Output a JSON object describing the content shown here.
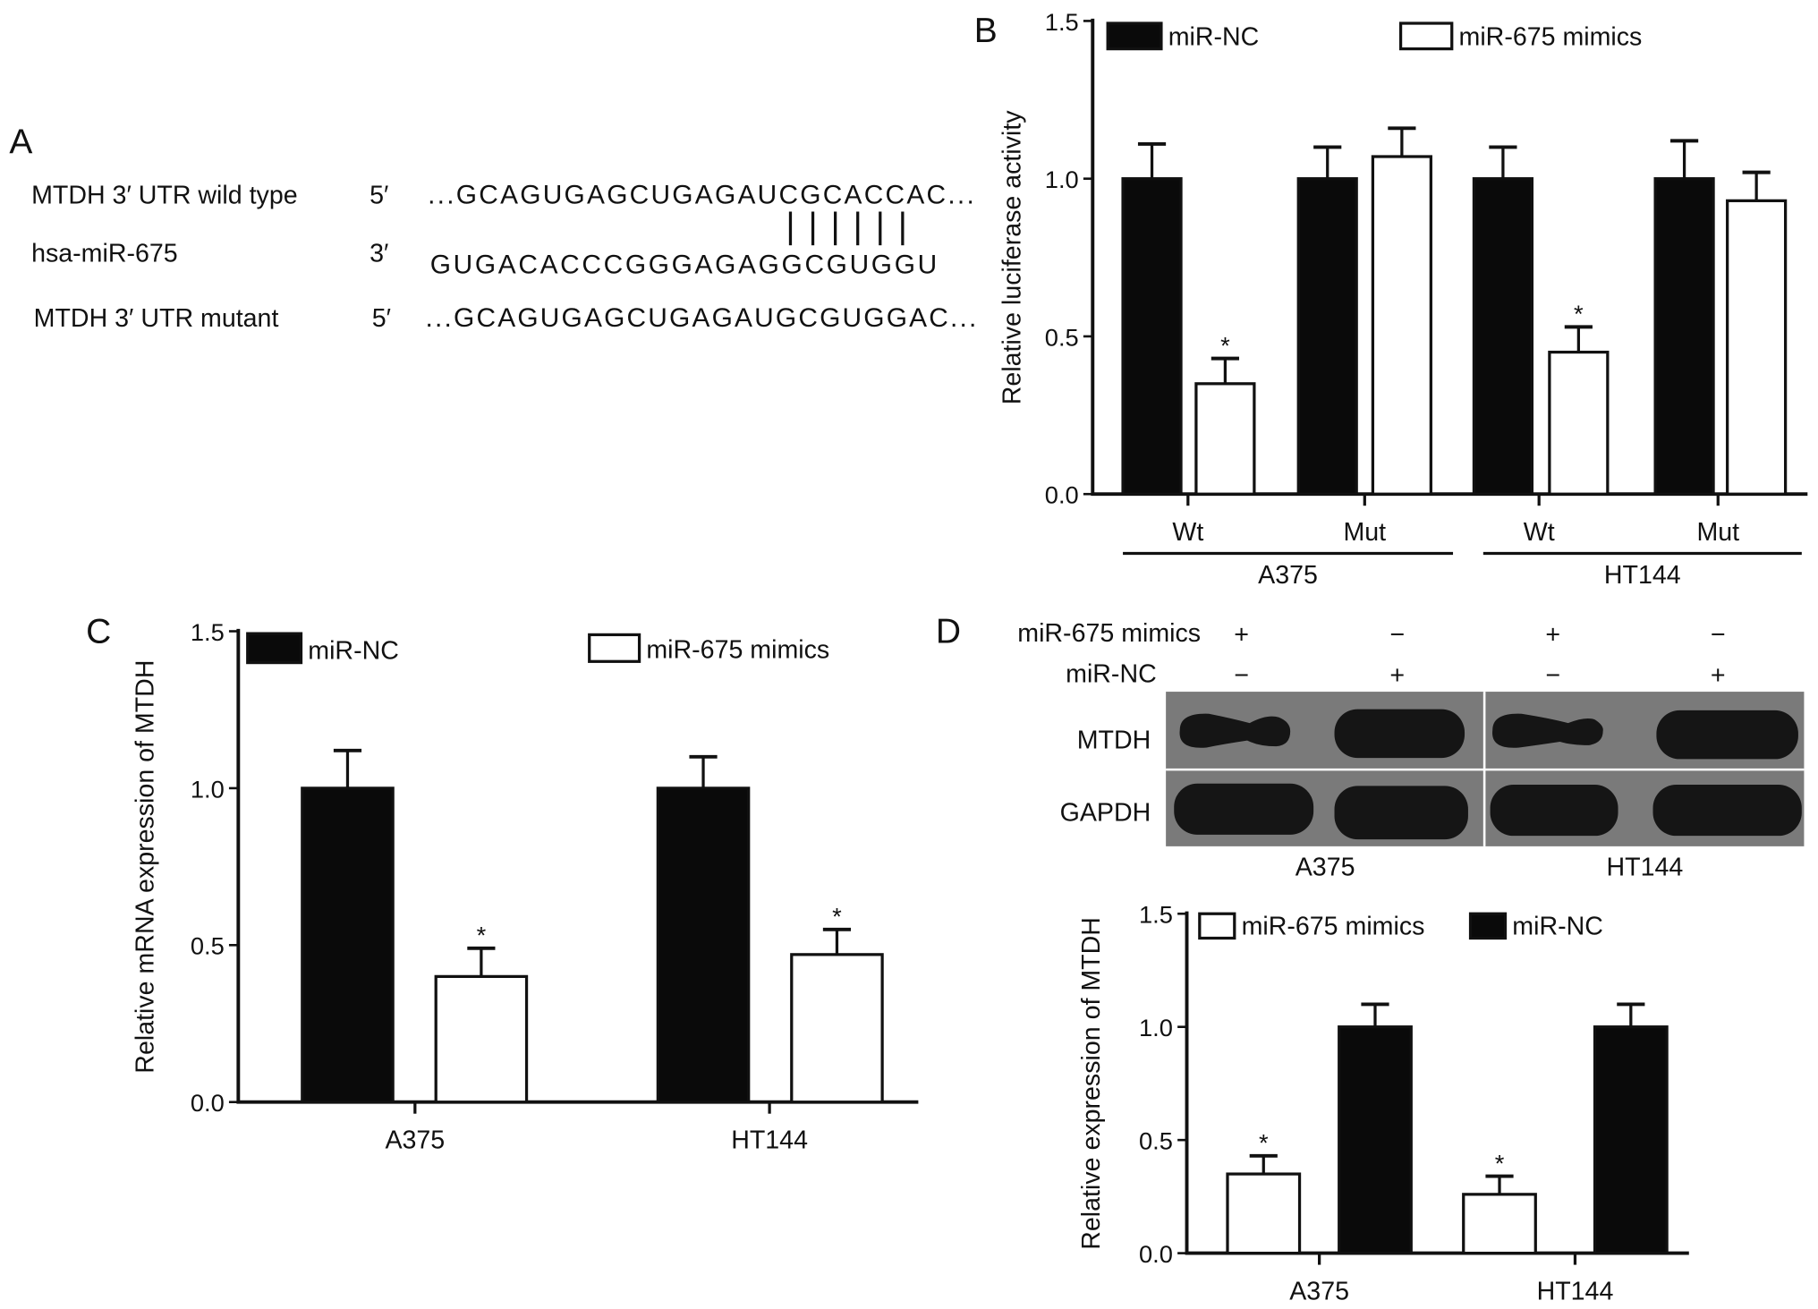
{
  "panels": {
    "a": "A",
    "b": "B",
    "c": "C",
    "d": "D"
  },
  "panel_a": {
    "rows": [
      {
        "label": "MTDH 3′ UTR wild type",
        "end": "5′",
        "sequence": "...GCAGUGAGCUGAGAUCGCACCAC..."
      },
      {
        "label": "hsa-miR-675",
        "end": "3′",
        "sequence": "GUGACACCCGGGAGAGGCGUGGU"
      },
      {
        "label": "MTDH 3′ UTR mutant",
        "end": "5′",
        "sequence": "...GCAGUGAGCUGAGAUGCGUGGAC..."
      }
    ],
    "pairing_lines": 6
  },
  "blot": {
    "row_labels": [
      "miR-675 mimics",
      "miR-NC"
    ],
    "conditions": [
      [
        "+",
        "−",
        "+",
        "−"
      ],
      [
        "−",
        "+",
        "−",
        "+"
      ]
    ],
    "bands": [
      "MTDH",
      "GAPDH"
    ],
    "cell_lines": [
      "A375",
      "HT144"
    ]
  },
  "colors": {
    "miR-NC": "#0a0a0a",
    "miR-675 mimics": "#ffffff",
    "blot_bg": "#777777"
  },
  "chart_data": [
    {
      "id": "B",
      "type": "bar",
      "ylabel": "Relative luciferase activity",
      "ylim": [
        0,
        1.5
      ],
      "yticks": [
        "0.0",
        "0.5",
        "1.0",
        "1.5"
      ],
      "categories": [
        "Wt",
        "Mut",
        "Wt",
        "Mut"
      ],
      "groups": [
        "A375",
        "HT144"
      ],
      "legend": "top",
      "series": [
        {
          "name": "miR-NC",
          "values": [
            1.0,
            1.0,
            1.0,
            1.0
          ],
          "errors": [
            0.11,
            0.1,
            0.1,
            0.12
          ]
        },
        {
          "name": "miR-675 mimics",
          "values": [
            0.35,
            1.07,
            0.45,
            0.93
          ],
          "errors": [
            0.08,
            0.09,
            0.08,
            0.09
          ],
          "significance": [
            "*",
            "",
            "*",
            ""
          ]
        }
      ]
    },
    {
      "id": "C",
      "type": "bar",
      "ylabel": "Relative mRNA expression of MTDH",
      "ylim": [
        0,
        1.5
      ],
      "yticks": [
        "0.0",
        "0.5",
        "1.0",
        "1.5"
      ],
      "categories": [
        "A375",
        "HT144"
      ],
      "legend": "top",
      "series": [
        {
          "name": "miR-NC",
          "values": [
            1.0,
            1.0
          ],
          "errors": [
            0.12,
            0.1
          ]
        },
        {
          "name": "miR-675 mimics",
          "values": [
            0.4,
            0.47
          ],
          "errors": [
            0.09,
            0.08
          ],
          "significance": [
            "*",
            "*"
          ]
        }
      ]
    },
    {
      "id": "D",
      "type": "bar",
      "ylabel": "Relative expression of MTDH",
      "ylim": [
        0,
        1.5
      ],
      "yticks": [
        "0.0",
        "0.5",
        "1.0",
        "1.5"
      ],
      "categories": [
        "A375",
        "HT144"
      ],
      "legend": "top",
      "series": [
        {
          "name": "miR-675 mimics",
          "values": [
            0.35,
            0.26
          ],
          "errors": [
            0.08,
            0.08
          ],
          "significance": [
            "*",
            "*"
          ]
        },
        {
          "name": "miR-NC",
          "values": [
            1.0,
            1.0
          ],
          "errors": [
            0.1,
            0.1
          ]
        }
      ]
    }
  ]
}
